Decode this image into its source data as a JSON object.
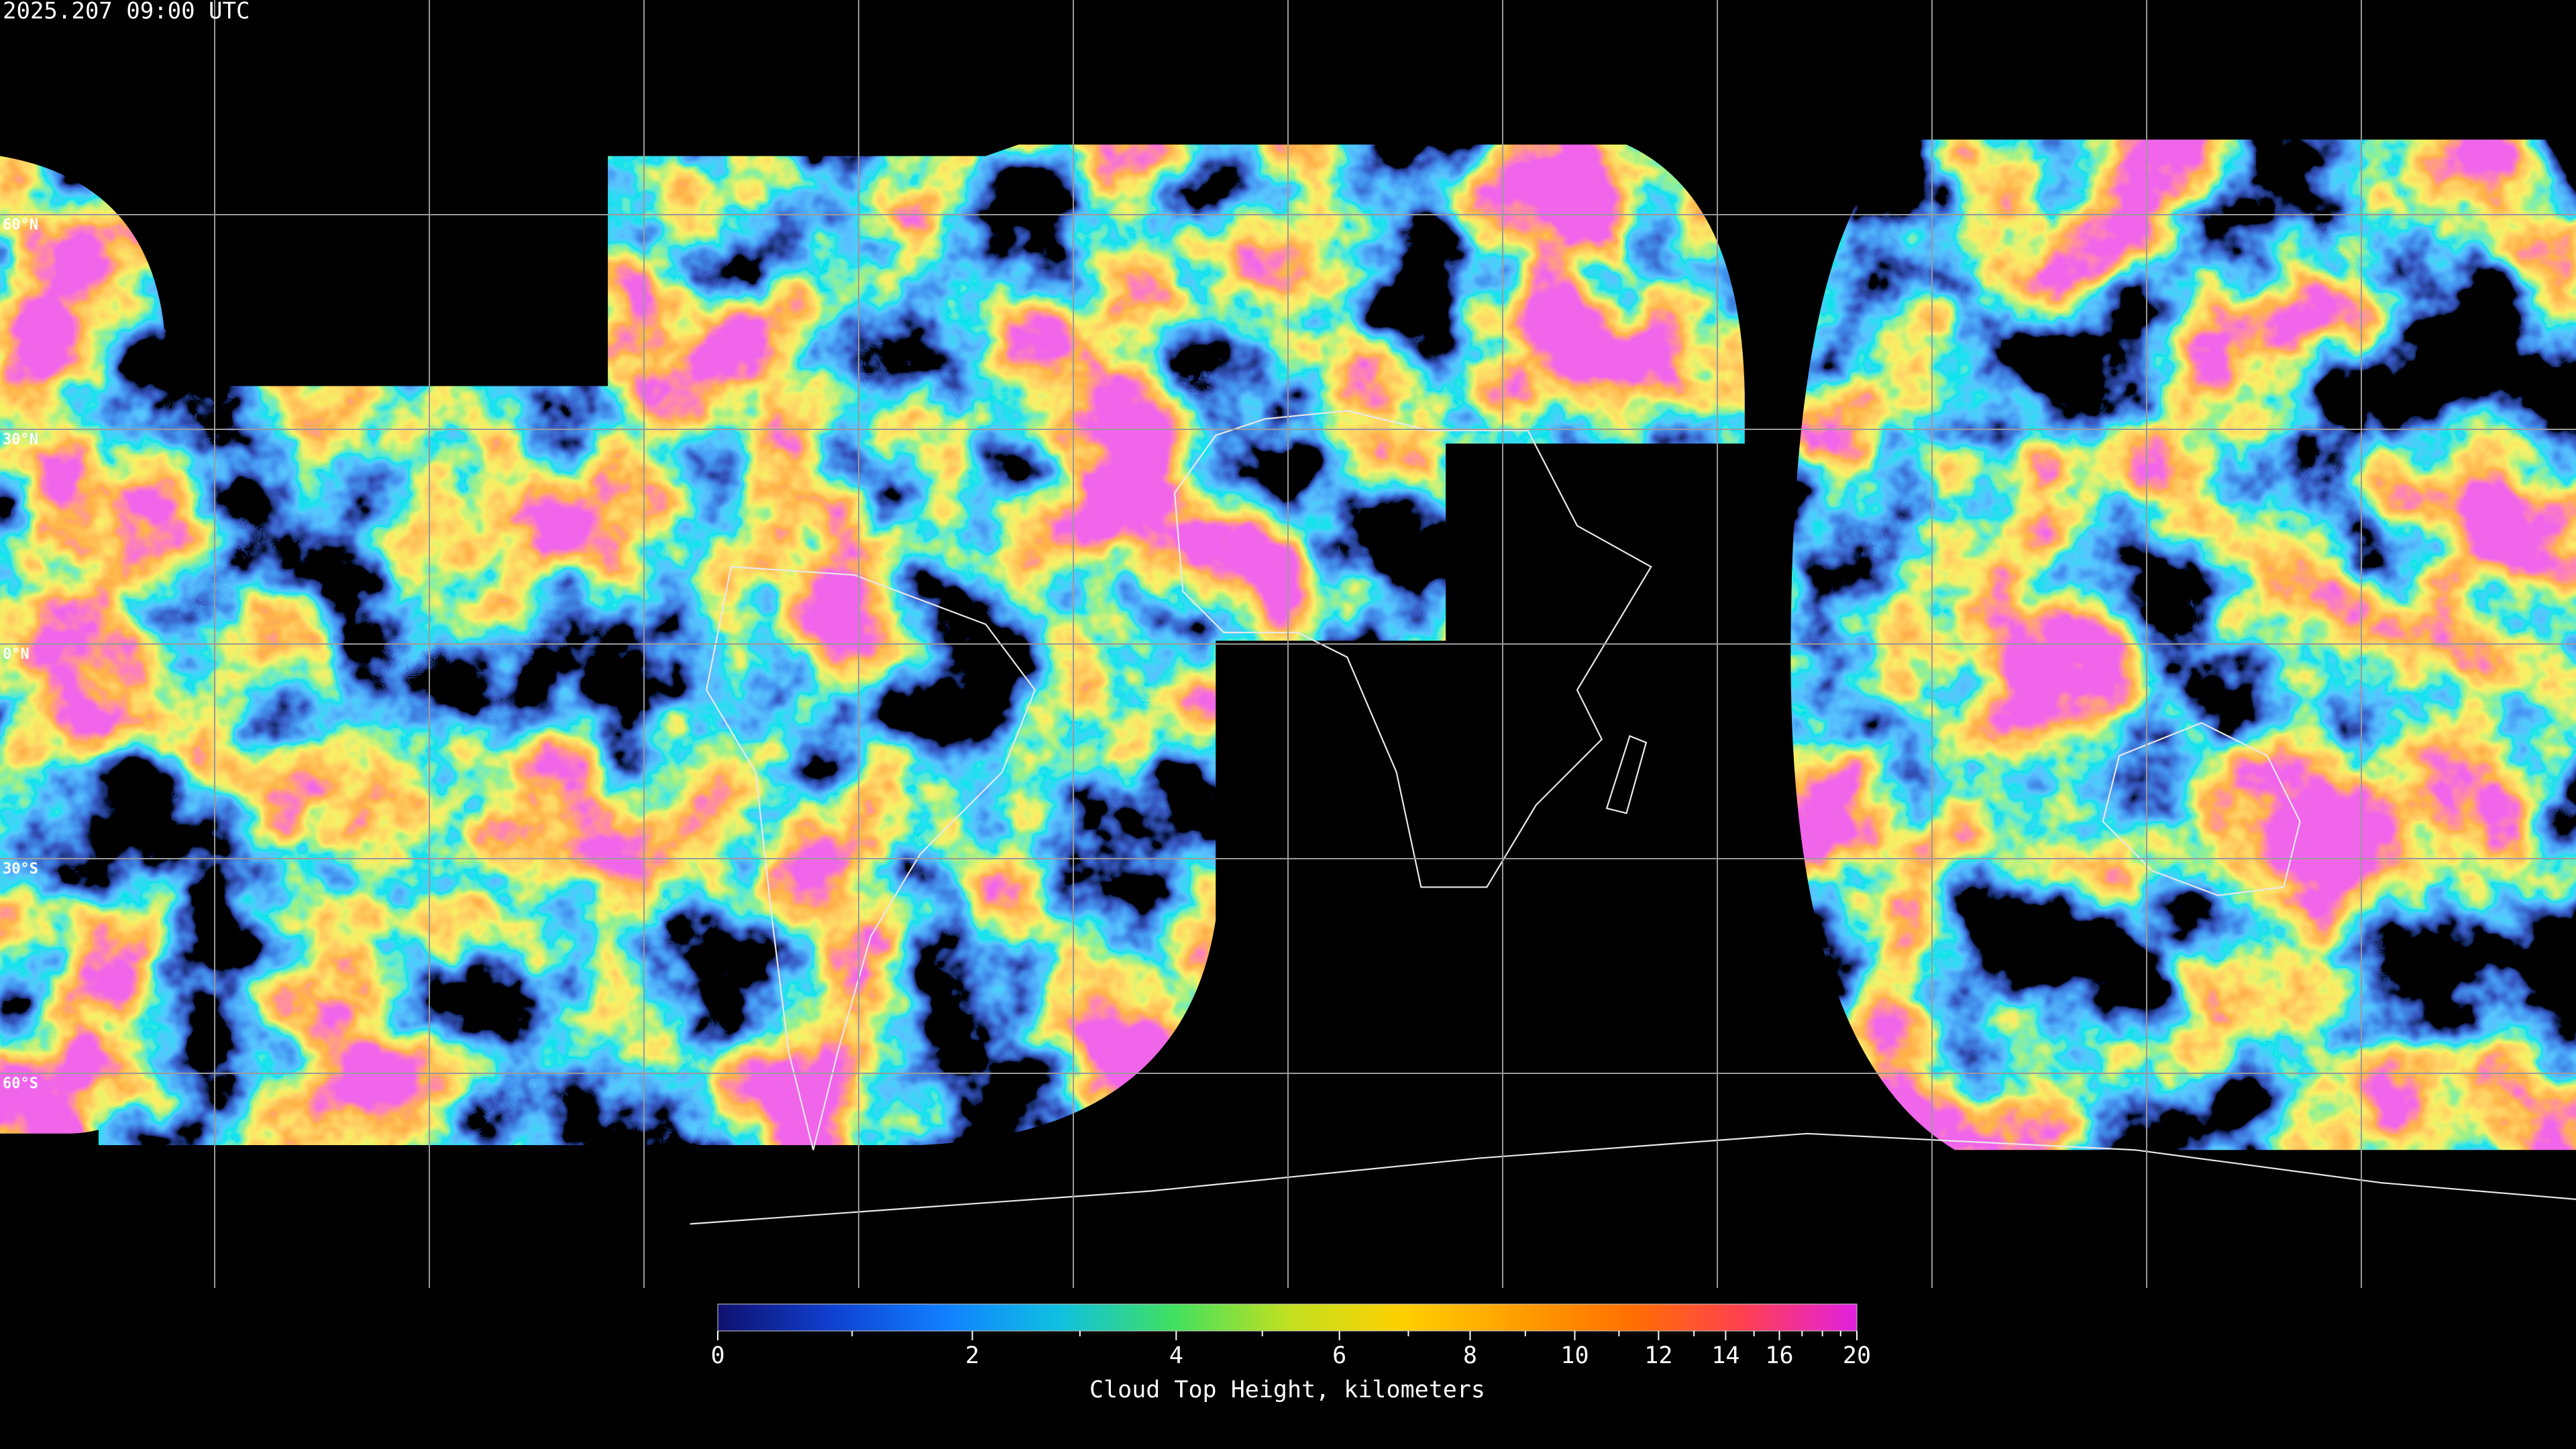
{
  "title": "2025.207 09:00 UTC",
  "map": {
    "lat_grid": [
      {
        "value": 60,
        "label": "60°N"
      },
      {
        "value": 30,
        "label": "30°N"
      },
      {
        "value": 0,
        "label": "0°N"
      },
      {
        "value": -30,
        "label": "30°S"
      },
      {
        "value": -60,
        "label": "60°S"
      }
    ],
    "lon_grid": [
      -150,
      -120,
      -90,
      -60,
      -30,
      0,
      30,
      60,
      90,
      120,
      150
    ]
  },
  "colorbar": {
    "label": "Cloud Top Height, kilometers",
    "lim": [
      0,
      20
    ],
    "ticks": [
      0,
      2,
      4,
      6,
      8,
      10,
      12,
      14,
      16,
      20
    ],
    "minor_ticks": [
      1,
      3,
      5,
      7,
      9,
      11,
      13,
      15,
      17,
      18,
      19
    ],
    "colors": [
      "#10106e",
      "#1040d0",
      "#1080ff",
      "#10c0e0",
      "#40e060",
      "#c0e020",
      "#ffd000",
      "#ffa000",
      "#ff7000",
      "#ff4050",
      "#e020e0"
    ]
  }
}
